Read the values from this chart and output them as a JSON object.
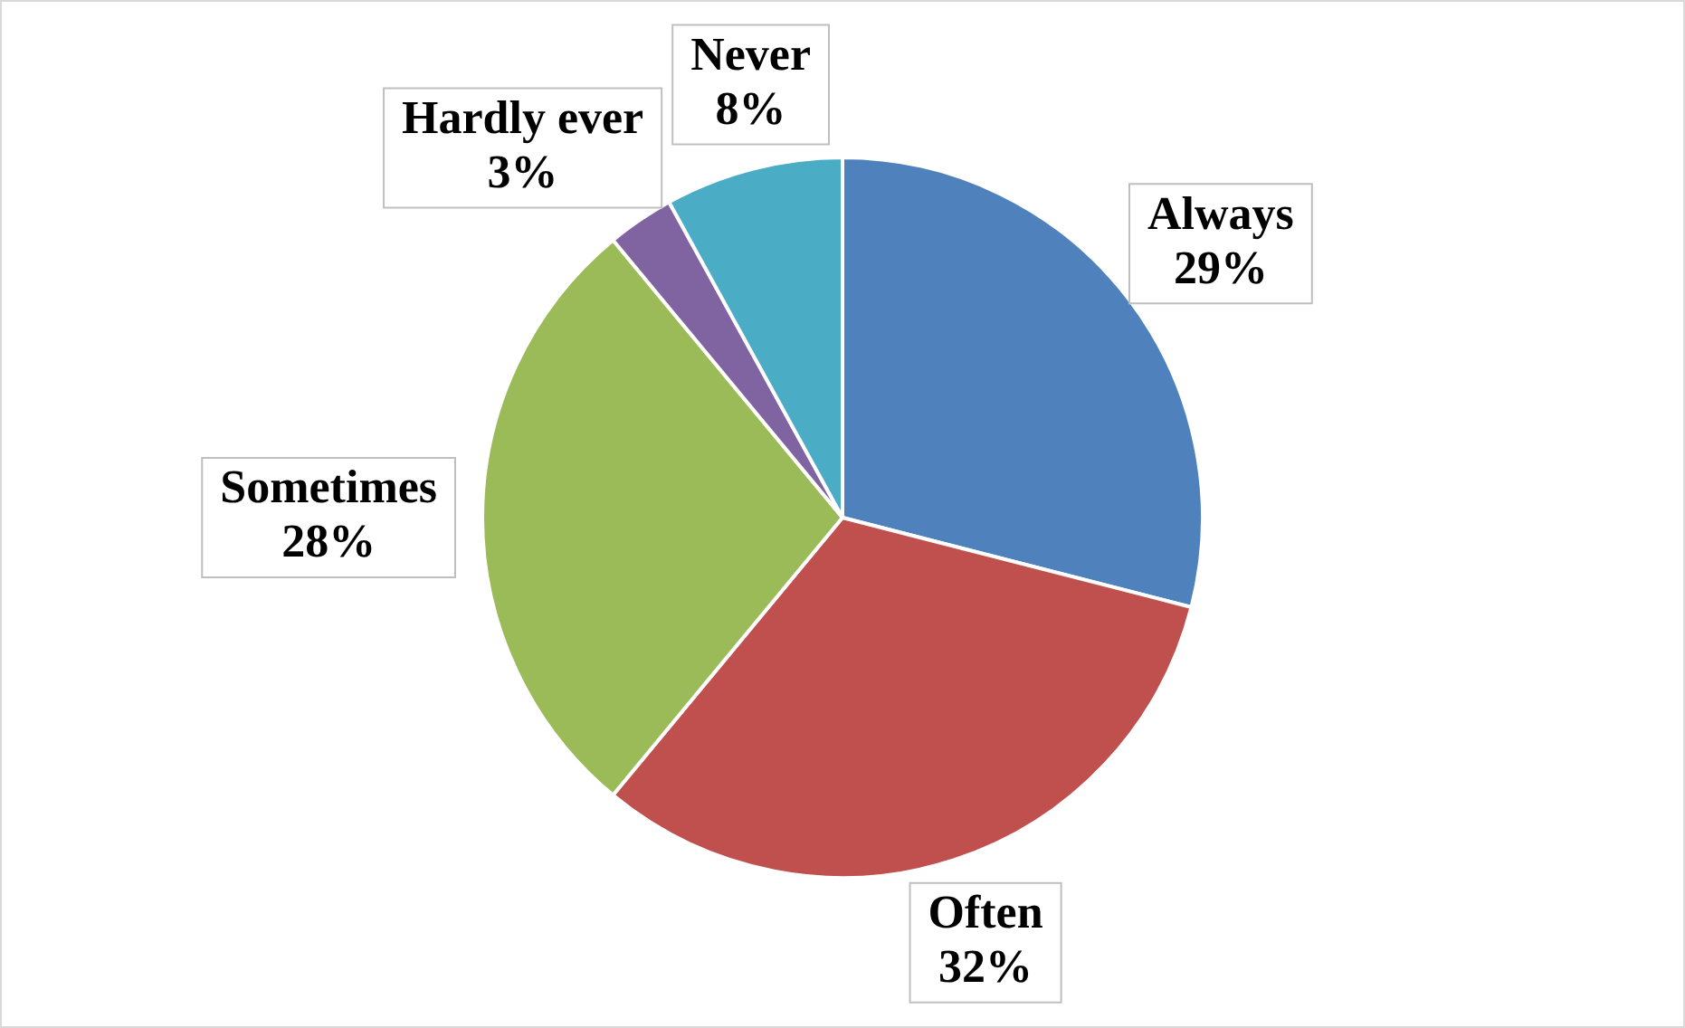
{
  "chart_data": {
    "type": "pie",
    "categories": [
      "Always",
      "Often",
      "Sometimes",
      "Hardly ever",
      "Never"
    ],
    "values": [
      29,
      32,
      28,
      3,
      8
    ],
    "colors": [
      "#4f81bd",
      "#c0504d",
      "#9bbb59",
      "#8064a2",
      "#4bacc6"
    ],
    "value_labels": [
      "29%",
      "32%",
      "28%",
      "3%",
      "8%"
    ],
    "legend": false
  }
}
